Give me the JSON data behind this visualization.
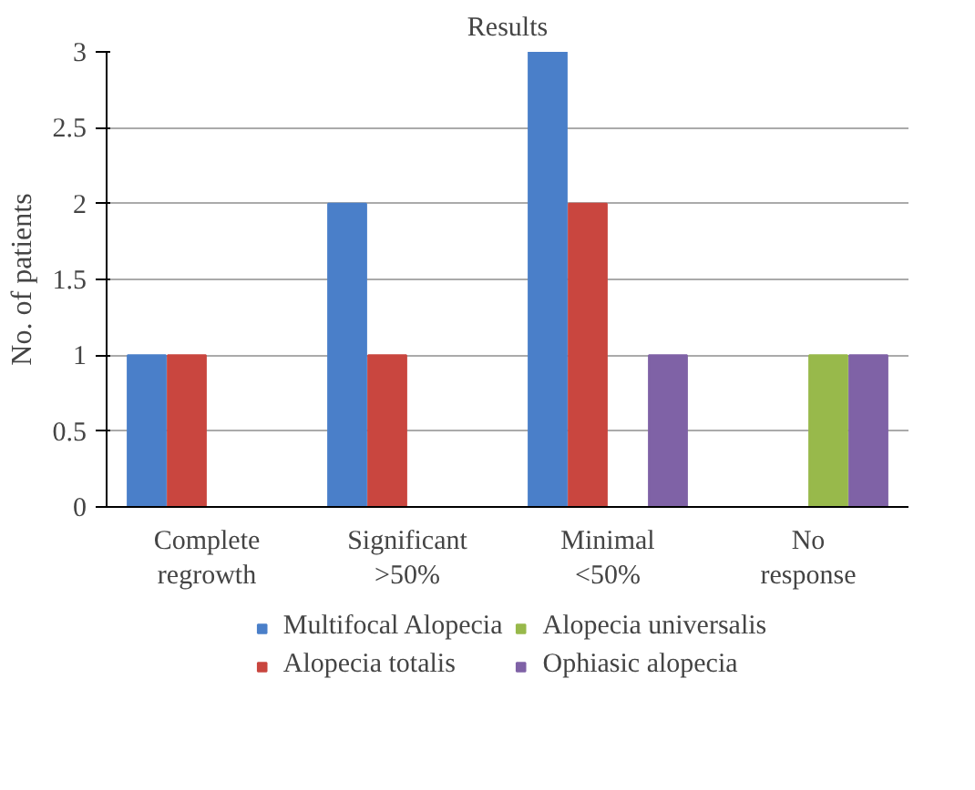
{
  "chart_data": {
    "type": "bar",
    "title": "Results",
    "ylabel": "No. of patients",
    "categories": [
      "Complete regrowth",
      "Significant >50%",
      "Minimal <50%",
      "No response"
    ],
    "series": [
      {
        "name": "Multifocal Alopecia",
        "color": "#4a7fc9",
        "values": [
          1,
          2,
          3,
          0
        ]
      },
      {
        "name": "Alopecia totalis",
        "color": "#c9463f",
        "values": [
          1,
          1,
          2,
          0
        ]
      },
      {
        "name": "Alopecia universalis",
        "color": "#98b94b",
        "values": [
          0,
          0,
          0,
          1
        ]
      },
      {
        "name": "Ophiasic alopecia",
        "color": "#7f62a6",
        "values": [
          0,
          0,
          1,
          1
        ]
      }
    ],
    "ylim": [
      0,
      3
    ],
    "yticks": [
      0,
      0.5,
      1,
      1.5,
      2,
      2.5,
      3
    ],
    "grid": "y",
    "legend": "bottom"
  }
}
